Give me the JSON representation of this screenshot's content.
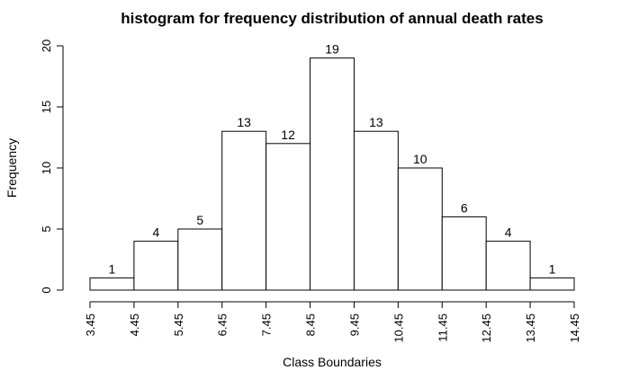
{
  "chart_data": {
    "type": "bar",
    "title": "histogram for frequency distribution of annual death rates",
    "xlabel": "Class Boundaries",
    "ylabel": "Frequency",
    "boundaries": [
      "3.45",
      "4.45",
      "5.45",
      "6.45",
      "7.45",
      "8.45",
      "9.45",
      "10.45",
      "11.45",
      "12.45",
      "13.45",
      "14.45"
    ],
    "values": [
      1,
      4,
      5,
      13,
      12,
      19,
      13,
      10,
      6,
      4,
      1
    ],
    "yticks": [
      "0",
      "5",
      "10",
      "15",
      "20"
    ],
    "ylim": [
      0,
      20
    ],
    "grid": false
  }
}
